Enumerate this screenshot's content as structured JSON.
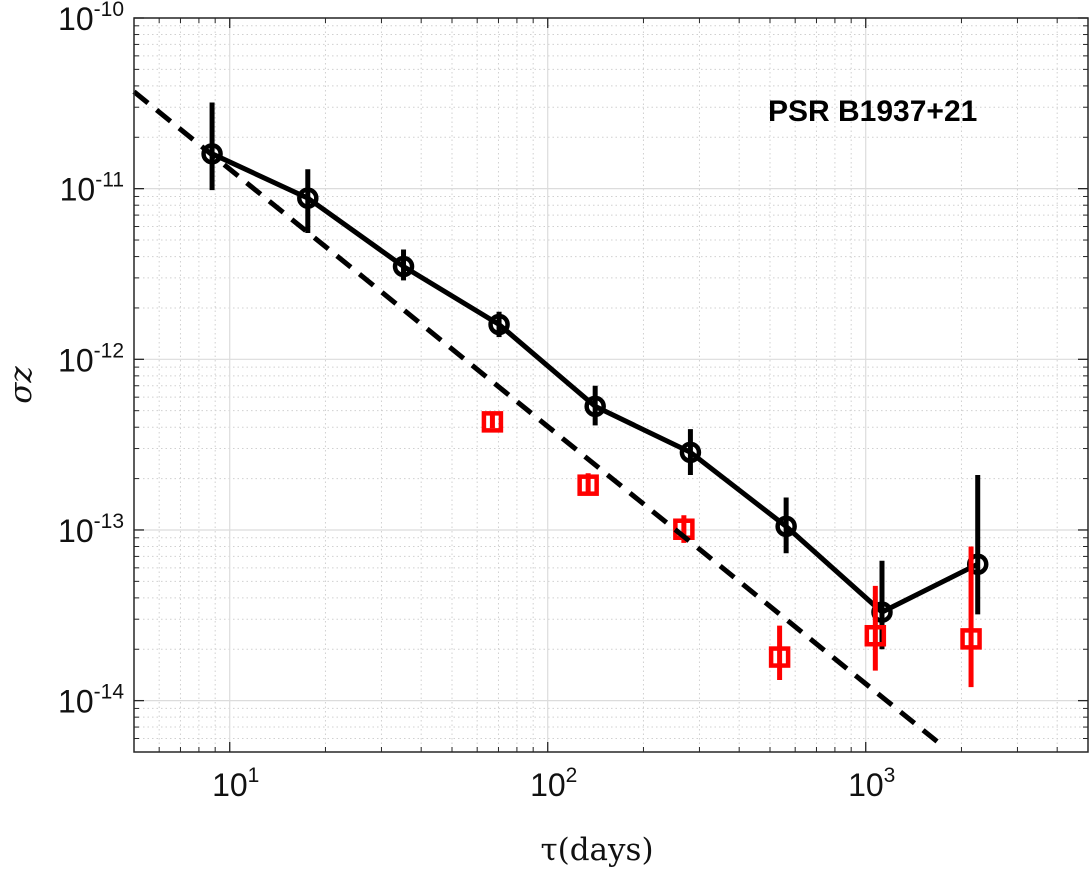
{
  "chart_data": {
    "type": "scatter",
    "annotation": "PSR B1937+21",
    "xlabel": "τ(days)",
    "ylabel": "σz",
    "xscale": "log",
    "yscale": "log",
    "xlim": [
      5,
      5000
    ],
    "ylim": [
      5e-15,
      1e-10
    ],
    "grid": true,
    "minor_grid": true,
    "legend": "none",
    "x_ticks": [
      {
        "value": 10,
        "base": "10",
        "exp": "1"
      },
      {
        "value": 100,
        "base": "10",
        "exp": "2"
      },
      {
        "value": 1000,
        "base": "10",
        "exp": "3"
      }
    ],
    "y_ticks": [
      {
        "value": 1e-14,
        "base": "10",
        "exp": "-14"
      },
      {
        "value": 1e-13,
        "base": "10",
        "exp": "-13"
      },
      {
        "value": 1e-12,
        "base": "10",
        "exp": "-12"
      },
      {
        "value": 1e-11,
        "base": "10",
        "exp": "-11"
      },
      {
        "value": 1e-10,
        "base": "10",
        "exp": "-10"
      }
    ],
    "series": [
      {
        "marker": "circle",
        "connected": true,
        "color": "#000000",
        "points": [
          {
            "x": 8.8,
            "y": 1.6e-11,
            "ylow": 9.8e-12,
            "yhigh": 3.2e-11
          },
          {
            "x": 17.6,
            "y": 8.8e-12,
            "ylow": 5.5e-12,
            "yhigh": 1.3e-11
          },
          {
            "x": 35.2,
            "y": 3.5e-12,
            "ylow": 2.9e-12,
            "yhigh": 4.4e-12
          },
          {
            "x": 70.3,
            "y": 1.6e-12,
            "ylow": 1.35e-12,
            "yhigh": 1.9e-12
          },
          {
            "x": 141,
            "y": 5.3e-13,
            "ylow": 4.1e-13,
            "yhigh": 7e-13
          },
          {
            "x": 281,
            "y": 2.85e-13,
            "ylow": 2.1e-13,
            "yhigh": 3.9e-13
          },
          {
            "x": 562,
            "y": 1.05e-13,
            "ylow": 7.3e-14,
            "yhigh": 1.55e-13
          },
          {
            "x": 1125,
            "y": 3.3e-14,
            "ylow": 2e-14,
            "yhigh": 6.6e-14
          },
          {
            "x": 2250,
            "y": 6.3e-14,
            "ylow": 3.2e-14,
            "yhigh": 2.1e-13
          }
        ]
      },
      {
        "marker": "square",
        "connected": false,
        "color": "#ff0000",
        "points": [
          {
            "x": 67,
            "y": 4.3e-13,
            "ylow": 3.95e-13,
            "yhigh": 4.7e-13
          },
          {
            "x": 134,
            "y": 1.83e-13,
            "ylow": 1.6e-13,
            "yhigh": 2.15e-13
          },
          {
            "x": 268,
            "y": 1.01e-13,
            "ylow": 8.4e-14,
            "yhigh": 1.22e-13
          },
          {
            "x": 536,
            "y": 1.8e-14,
            "ylow": 1.32e-14,
            "yhigh": 2.75e-14
          },
          {
            "x": 1072,
            "y": 2.4e-14,
            "ylow": 1.5e-14,
            "yhigh": 4.7e-14
          },
          {
            "x": 2144,
            "y": 2.3e-14,
            "ylow": 1.2e-14,
            "yhigh": 8e-14
          }
        ]
      },
      {
        "style": "dashed",
        "color": "#000000",
        "points": [
          {
            "x": 5,
            "y": 3.7e-11
          },
          {
            "x": 1750,
            "y": 5.4e-15
          }
        ]
      }
    ]
  }
}
